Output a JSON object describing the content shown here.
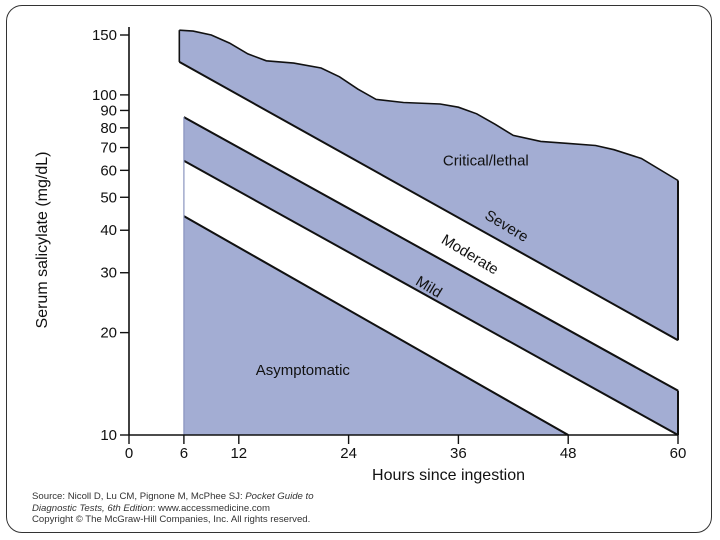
{
  "chart_data": {
    "type": "area",
    "title": "",
    "xlabel": "Hours since ingestion",
    "ylabel": "Serum salicylate (mg/dL)",
    "xlim": [
      0,
      60
    ],
    "ylim": [
      10,
      150
    ],
    "yscale": "log",
    "x_ticks": [
      0,
      6,
      12,
      24,
      36,
      48,
      60
    ],
    "x_tick_labels": [
      "0",
      "6",
      "12",
      "24",
      "36",
      "48",
      "60"
    ],
    "y_ticks": [
      10,
      20,
      30,
      40,
      50,
      60,
      70,
      80,
      90,
      100,
      150
    ],
    "y_tick_labels": [
      "10",
      "20",
      "30",
      "40",
      "50",
      "60",
      "70",
      "80",
      "90",
      "100",
      "150"
    ],
    "fill_color": "#a3add3",
    "line_color": "#111111",
    "regions": [
      {
        "name": "Critical/lethal",
        "filled": true,
        "lower": [
          [
            5.5,
            125
          ],
          [
            60,
            19
          ]
        ],
        "upper": [
          [
            5.5,
            155
          ],
          [
            7,
            154
          ],
          [
            9,
            150
          ],
          [
            11,
            142
          ],
          [
            13,
            132
          ],
          [
            15,
            126
          ],
          [
            18,
            124
          ],
          [
            21,
            120
          ],
          [
            23,
            113
          ],
          [
            25,
            104
          ],
          [
            27,
            97
          ],
          [
            30,
            95
          ],
          [
            34,
            94
          ],
          [
            36,
            92
          ],
          [
            38,
            88
          ],
          [
            40,
            82
          ],
          [
            42,
            76
          ],
          [
            45,
            73
          ],
          [
            48,
            72
          ],
          [
            51,
            71
          ],
          [
            53,
            69
          ],
          [
            56,
            65
          ],
          [
            60,
            56
          ]
        ]
      },
      {
        "name": "Severe",
        "filled": false
      },
      {
        "name": "Moderate",
        "filled": true,
        "lower": [
          [
            6,
            64
          ],
          [
            60,
            10
          ]
        ],
        "upper": [
          [
            6,
            86
          ],
          [
            60,
            13.5
          ]
        ]
      },
      {
        "name": "Mild",
        "filled": false
      },
      {
        "name": "Asymptomatic",
        "filled": true,
        "lower": [
          [
            6,
            10
          ],
          [
            48,
            10
          ]
        ],
        "upper": [
          [
            6,
            44
          ],
          [
            48,
            10
          ]
        ]
      }
    ],
    "boundary_lines": [
      {
        "from": [
          5.5,
          125
        ],
        "to": [
          60,
          19
        ]
      },
      {
        "from": [
          6,
          86
        ],
        "to": [
          60,
          13.5
        ]
      },
      {
        "from": [
          6,
          64
        ],
        "to": [
          60,
          10
        ]
      },
      {
        "from": [
          6,
          44
        ],
        "to": [
          48,
          10
        ]
      }
    ],
    "region_labels": [
      {
        "text": "Critical/lethal",
        "at": [
          39,
          62
        ],
        "angle": 0
      },
      {
        "text": "Severe",
        "at": [
          41,
          40
        ],
        "angle": 31
      },
      {
        "text": "Moderate",
        "at": [
          37,
          33
        ],
        "angle": 31
      },
      {
        "text": "Mild",
        "at": [
          32.5,
          26.5
        ],
        "angle": 31
      },
      {
        "text": "Asymptomatic",
        "at": [
          19,
          15
        ],
        "angle": 0
      }
    ]
  },
  "source": {
    "line1_prefix": "Source: Nicoll D, Lu CM, Pignone M, McPhee SJ: ",
    "line1_title": "Pocket Guide to",
    "line2_title": "Diagnostic Tests, 6th Edition",
    "line2_suffix": ": www.accessmedicine.com",
    "line3": "Copyright © The McGraw-Hill Companies, Inc. All rights reserved."
  }
}
